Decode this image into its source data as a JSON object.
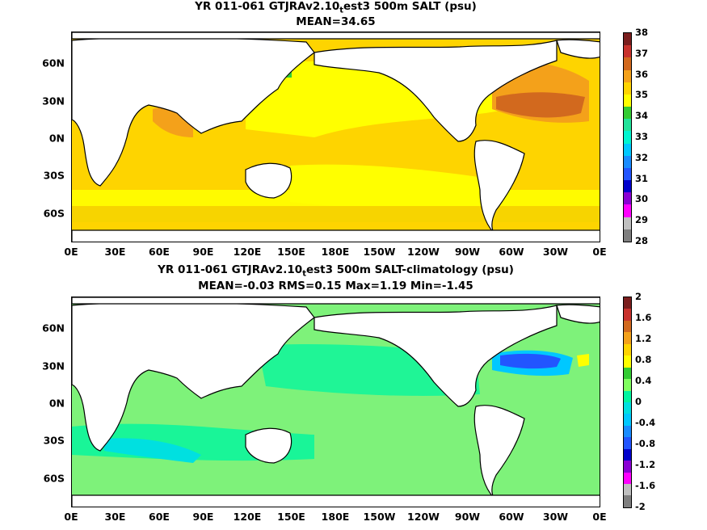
{
  "panel1": {
    "title_a": "YR 011-061 GTJRAv2.10",
    "title_sub": "t",
    "title_b": "est3 500m SALT (psu)",
    "stats": "MEAN=34.65",
    "yticks": [
      "60N",
      "30N",
      "0N",
      "30S",
      "60S"
    ],
    "xticks": [
      "0E",
      "30E",
      "60E",
      "90E",
      "120E",
      "150E",
      "180E",
      "150W",
      "120W",
      "90W",
      "60W",
      "30W",
      "0E"
    ],
    "cbar_labels": [
      "38",
      "37",
      "36",
      "35",
      "34",
      "33",
      "32",
      "31",
      "30",
      "29",
      "28"
    ],
    "cbar_colors": [
      "#7a1e1e",
      "#c8322d",
      "#d2691e",
      "#f4a11a",
      "#ffd400",
      "#ffff00",
      "#33cc33",
      "#22e39a",
      "#00f5d0",
      "#00c8ff",
      "#1a8cff",
      "#2255ff",
      "#0000cc",
      "#8a00d4",
      "#ff00ff",
      "#c0c0c0",
      "#7f7f7f"
    ],
    "background_color": "#fed400"
  },
  "panel2": {
    "title_a": "YR 011-061 GTJRAv2.10",
    "title_sub": "t",
    "title_b": "est3 500m SALT-climatology (psu)",
    "stats": "MEAN=-0.03   RMS=0.15   Max=1.19   Min=-1.45",
    "yticks": [
      "60N",
      "30N",
      "0N",
      "30S",
      "60S"
    ],
    "xticks": [
      "0E",
      "30E",
      "60E",
      "90E",
      "120E",
      "150E",
      "180E",
      "150W",
      "120W",
      "90W",
      "60W",
      "30W",
      "0E"
    ],
    "cbar_labels": [
      "2",
      "1.6",
      "1.2",
      "0.8",
      "0.4",
      "0",
      "-0.4",
      "-0.8",
      "-1.2",
      "-1.6",
      "-2"
    ],
    "cbar_colors": [
      "#7a1e1e",
      "#c8322d",
      "#d2691e",
      "#f4a11a",
      "#ffd400",
      "#ffff00",
      "#33cc33",
      "#7fff5f",
      "#00f5a0",
      "#00e0e0",
      "#00c8ff",
      "#1a8cff",
      "#2255ff",
      "#0000cc",
      "#8a00d4",
      "#ff00ff",
      "#c0c0c0",
      "#7f7f7f"
    ],
    "background_color": "#7ef27a"
  }
}
